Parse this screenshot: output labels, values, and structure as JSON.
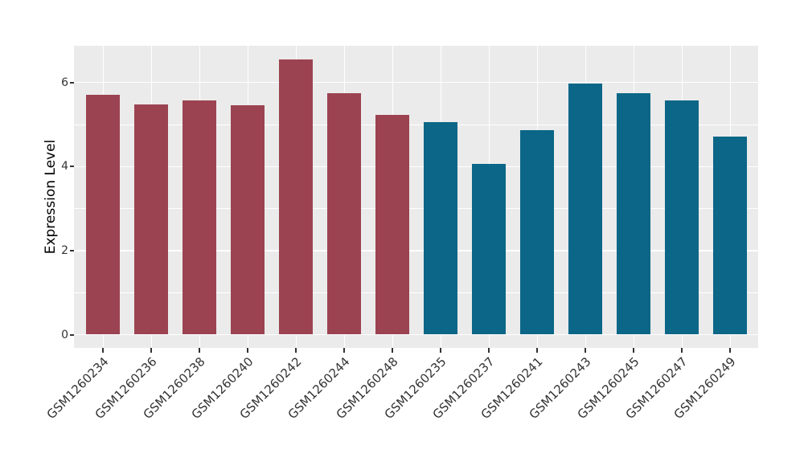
{
  "chart_data": {
    "type": "bar",
    "title": "",
    "xlabel": "",
    "ylabel": "Expression Level",
    "categories": [
      "GSM1260234",
      "GSM1260236",
      "GSM1260238",
      "GSM1260240",
      "GSM1260242",
      "GSM1260244",
      "GSM1260248",
      "GSM1260235",
      "GSM1260237",
      "GSM1260241",
      "GSM1260243",
      "GSM1260245",
      "GSM1260247",
      "GSM1260249"
    ],
    "values": [
      5.7,
      5.48,
      5.57,
      5.45,
      6.55,
      5.75,
      5.22,
      5.05,
      4.06,
      4.86,
      5.98,
      5.75,
      5.57,
      4.71
    ],
    "groups": [
      "group1",
      "group1",
      "group1",
      "group1",
      "group1",
      "group1",
      "group1",
      "group2",
      "group2",
      "group2",
      "group2",
      "group2",
      "group2",
      "group2"
    ],
    "group_colors": {
      "group1": "#9B4351",
      "group2": "#0B6687"
    },
    "ylim": [
      0,
      6.89
    ],
    "yticks": [
      0,
      2,
      4,
      6
    ],
    "ytick_labels": [
      "0",
      "2",
      "4",
      "6"
    ],
    "yticks_minor": [
      1,
      3,
      5
    ],
    "x_tick_angle": -45,
    "grid": "white major and minor gridlines on gray panel",
    "legend_position": "none",
    "panel_bg": "#EBEBEB",
    "axis_text_color": "#333333",
    "axis_title_color": "#000000"
  }
}
